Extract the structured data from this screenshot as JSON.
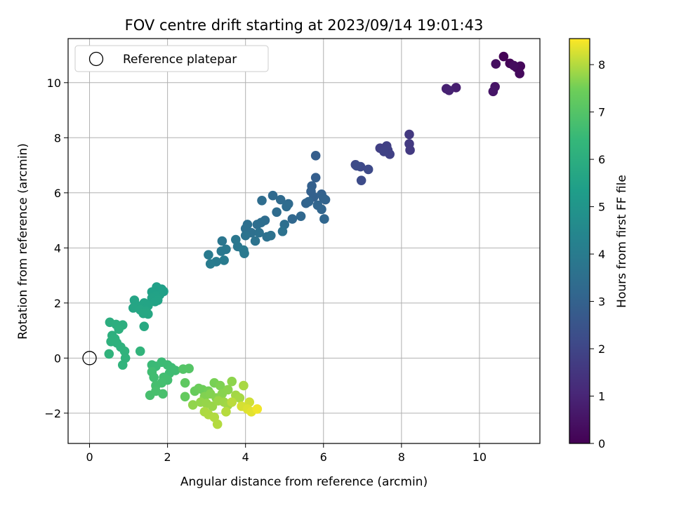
{
  "chart_data": {
    "type": "scatter",
    "title": "FOV centre drift starting at 2023/09/14 19:01:43",
    "xlabel": "Angular distance from reference (arcmin)",
    "ylabel": "Rotation from reference (arcmin)",
    "xlim": [
      -0.55,
      11.55
    ],
    "ylim": [
      -3.1,
      11.6
    ],
    "xticks": [
      0,
      2,
      4,
      6,
      8,
      10
    ],
    "yticks": [
      -2,
      0,
      2,
      4,
      6,
      8,
      10
    ],
    "grid": true,
    "legend": {
      "placement": "top-left",
      "entries": [
        {
          "label": "Reference platepar",
          "marker": "open-circle"
        }
      ]
    },
    "reference_point": {
      "x": 0,
      "y": 0
    },
    "colorbar": {
      "label": "Hours from first FF file",
      "min": 0,
      "max": 8.55,
      "ticks": [
        0,
        1,
        2,
        3,
        4,
        5,
        6,
        7,
        8
      ],
      "colormap": "viridis"
    },
    "points": [
      {
        "x": 10.62,
        "y": 10.95,
        "c": 0.05
      },
      {
        "x": 10.78,
        "y": 10.7,
        "c": 0.1
      },
      {
        "x": 10.95,
        "y": 10.55,
        "c": 0.15
      },
      {
        "x": 11.05,
        "y": 10.6,
        "c": 0.2
      },
      {
        "x": 11.03,
        "y": 10.33,
        "c": 0.25
      },
      {
        "x": 10.88,
        "y": 10.62,
        "c": 0.3
      },
      {
        "x": 10.42,
        "y": 10.68,
        "c": 0.35
      },
      {
        "x": 10.4,
        "y": 9.85,
        "c": 0.5
      },
      {
        "x": 10.35,
        "y": 9.68,
        "c": 0.55
      },
      {
        "x": 9.4,
        "y": 9.82,
        "c": 0.8
      },
      {
        "x": 9.15,
        "y": 9.78,
        "c": 0.85
      },
      {
        "x": 9.22,
        "y": 9.72,
        "c": 0.9
      },
      {
        "x": 8.2,
        "y": 8.12,
        "c": 1.6
      },
      {
        "x": 8.2,
        "y": 7.78,
        "c": 1.62
      },
      {
        "x": 8.22,
        "y": 7.55,
        "c": 1.65
      },
      {
        "x": 7.45,
        "y": 7.62,
        "c": 1.8
      },
      {
        "x": 7.62,
        "y": 7.7,
        "c": 1.82
      },
      {
        "x": 7.65,
        "y": 7.55,
        "c": 1.84
      },
      {
        "x": 7.7,
        "y": 7.4,
        "c": 1.86
      },
      {
        "x": 7.55,
        "y": 7.5,
        "c": 1.88
      },
      {
        "x": 6.82,
        "y": 7.02,
        "c": 2.1
      },
      {
        "x": 6.95,
        "y": 6.95,
        "c": 2.12
      },
      {
        "x": 7.15,
        "y": 6.85,
        "c": 2.15
      },
      {
        "x": 6.97,
        "y": 6.45,
        "c": 2.18
      },
      {
        "x": 6.85,
        "y": 6.98,
        "c": 2.2
      },
      {
        "x": 5.8,
        "y": 7.35,
        "c": 2.85
      },
      {
        "x": 5.8,
        "y": 6.55,
        "c": 2.9
      },
      {
        "x": 5.7,
        "y": 6.25,
        "c": 2.92
      },
      {
        "x": 5.68,
        "y": 6.05,
        "c": 2.95
      },
      {
        "x": 5.75,
        "y": 5.85,
        "c": 2.97
      },
      {
        "x": 5.95,
        "y": 5.95,
        "c": 3.0
      },
      {
        "x": 6.0,
        "y": 5.8,
        "c": 3.02
      },
      {
        "x": 6.05,
        "y": 5.75,
        "c": 3.05
      },
      {
        "x": 5.55,
        "y": 5.62,
        "c": 3.07
      },
      {
        "x": 5.62,
        "y": 5.68,
        "c": 3.1
      },
      {
        "x": 5.85,
        "y": 5.55,
        "c": 3.12
      },
      {
        "x": 5.95,
        "y": 5.4,
        "c": 3.15
      },
      {
        "x": 6.02,
        "y": 5.05,
        "c": 3.17
      },
      {
        "x": 5.42,
        "y": 5.15,
        "c": 3.2
      },
      {
        "x": 5.2,
        "y": 5.05,
        "c": 3.22
      },
      {
        "x": 4.7,
        "y": 5.9,
        "c": 3.3
      },
      {
        "x": 4.9,
        "y": 5.75,
        "c": 3.32
      },
      {
        "x": 5.1,
        "y": 5.6,
        "c": 3.34
      },
      {
        "x": 5.05,
        "y": 5.5,
        "c": 3.36
      },
      {
        "x": 4.8,
        "y": 5.3,
        "c": 3.38
      },
      {
        "x": 4.42,
        "y": 5.72,
        "c": 3.4
      },
      {
        "x": 4.5,
        "y": 5.0,
        "c": 3.42
      },
      {
        "x": 4.3,
        "y": 4.85,
        "c": 3.44
      },
      {
        "x": 4.4,
        "y": 4.92,
        "c": 3.46
      },
      {
        "x": 5.0,
        "y": 4.85,
        "c": 3.48
      },
      {
        "x": 4.05,
        "y": 4.85,
        "c": 3.5
      },
      {
        "x": 4.0,
        "y": 4.7,
        "c": 3.52
      },
      {
        "x": 4.15,
        "y": 4.55,
        "c": 3.54
      },
      {
        "x": 4.35,
        "y": 4.55,
        "c": 3.56
      },
      {
        "x": 4.55,
        "y": 4.4,
        "c": 3.58
      },
      {
        "x": 4.65,
        "y": 4.45,
        "c": 3.6
      },
      {
        "x": 4.95,
        "y": 4.6,
        "c": 3.62
      },
      {
        "x": 4.25,
        "y": 4.25,
        "c": 3.64
      },
      {
        "x": 4.0,
        "y": 4.45,
        "c": 3.66
      },
      {
        "x": 3.4,
        "y": 4.25,
        "c": 3.8
      },
      {
        "x": 3.75,
        "y": 4.3,
        "c": 3.82
      },
      {
        "x": 3.8,
        "y": 4.05,
        "c": 3.84
      },
      {
        "x": 3.5,
        "y": 3.95,
        "c": 3.86
      },
      {
        "x": 3.38,
        "y": 3.88,
        "c": 3.88
      },
      {
        "x": 3.95,
        "y": 3.92,
        "c": 3.9
      },
      {
        "x": 3.97,
        "y": 3.8,
        "c": 3.92
      },
      {
        "x": 3.05,
        "y": 3.75,
        "c": 3.95
      },
      {
        "x": 3.45,
        "y": 3.55,
        "c": 3.97
      },
      {
        "x": 3.25,
        "y": 3.5,
        "c": 4.0
      },
      {
        "x": 3.1,
        "y": 3.42,
        "c": 4.02
      },
      {
        "x": 1.85,
        "y": 2.5,
        "c": 5.4
      },
      {
        "x": 1.9,
        "y": 2.42,
        "c": 5.42
      },
      {
        "x": 1.72,
        "y": 2.58,
        "c": 5.44
      },
      {
        "x": 1.6,
        "y": 2.4,
        "c": 5.46
      },
      {
        "x": 1.8,
        "y": 2.3,
        "c": 5.48
      },
      {
        "x": 1.7,
        "y": 2.25,
        "c": 5.5
      },
      {
        "x": 1.6,
        "y": 2.18,
        "c": 5.52
      },
      {
        "x": 1.75,
        "y": 2.1,
        "c": 5.54
      },
      {
        "x": 1.68,
        "y": 2.05,
        "c": 5.56
      },
      {
        "x": 1.4,
        "y": 2.0,
        "c": 5.58
      },
      {
        "x": 1.5,
        "y": 1.9,
        "c": 5.6
      },
      {
        "x": 1.15,
        "y": 2.1,
        "c": 5.62
      },
      {
        "x": 1.18,
        "y": 1.95,
        "c": 5.64
      },
      {
        "x": 1.12,
        "y": 1.82,
        "c": 5.66
      },
      {
        "x": 1.3,
        "y": 1.75,
        "c": 5.68
      },
      {
        "x": 1.45,
        "y": 1.7,
        "c": 5.7
      },
      {
        "x": 1.5,
        "y": 1.6,
        "c": 5.72
      },
      {
        "x": 1.38,
        "y": 1.62,
        "c": 5.74
      },
      {
        "x": 1.4,
        "y": 1.15,
        "c": 5.8
      },
      {
        "x": 0.52,
        "y": 1.3,
        "c": 6.0
      },
      {
        "x": 0.68,
        "y": 1.22,
        "c": 6.02
      },
      {
        "x": 0.85,
        "y": 1.2,
        "c": 6.04
      },
      {
        "x": 0.75,
        "y": 1.05,
        "c": 6.06
      },
      {
        "x": 0.58,
        "y": 0.82,
        "c": 6.08
      },
      {
        "x": 0.65,
        "y": 0.7,
        "c": 6.1
      },
      {
        "x": 0.55,
        "y": 0.6,
        "c": 6.12
      },
      {
        "x": 0.7,
        "y": 0.55,
        "c": 6.14
      },
      {
        "x": 0.8,
        "y": 0.4,
        "c": 6.16
      },
      {
        "x": 0.9,
        "y": 0.25,
        "c": 6.18
      },
      {
        "x": 0.5,
        "y": 0.15,
        "c": 6.2
      },
      {
        "x": 0.92,
        "y": 0.0,
        "c": 6.22
      },
      {
        "x": 0.85,
        "y": -0.25,
        "c": 6.24
      },
      {
        "x": 1.3,
        "y": 0.25,
        "c": 6.26
      },
      {
        "x": 1.6,
        "y": -0.25,
        "c": 6.5
      },
      {
        "x": 1.7,
        "y": -0.3,
        "c": 6.52
      },
      {
        "x": 1.85,
        "y": -0.15,
        "c": 6.54
      },
      {
        "x": 2.0,
        "y": -0.25,
        "c": 6.56
      },
      {
        "x": 2.1,
        "y": -0.35,
        "c": 6.58
      },
      {
        "x": 2.05,
        "y": -0.55,
        "c": 6.6
      },
      {
        "x": 2.2,
        "y": -0.45,
        "c": 6.62
      },
      {
        "x": 1.6,
        "y": -0.5,
        "c": 6.64
      },
      {
        "x": 1.65,
        "y": -0.7,
        "c": 6.66
      },
      {
        "x": 1.9,
        "y": -0.7,
        "c": 6.68
      },
      {
        "x": 2.0,
        "y": -0.8,
        "c": 6.7
      },
      {
        "x": 1.85,
        "y": -0.9,
        "c": 6.72
      },
      {
        "x": 1.7,
        "y": -1.0,
        "c": 6.74
      },
      {
        "x": 1.55,
        "y": -1.35,
        "c": 6.76
      },
      {
        "x": 1.7,
        "y": -1.2,
        "c": 6.78
      },
      {
        "x": 1.88,
        "y": -1.3,
        "c": 6.8
      },
      {
        "x": 2.4,
        "y": -0.4,
        "c": 7.0
      },
      {
        "x": 2.55,
        "y": -0.38,
        "c": 7.02
      },
      {
        "x": 2.45,
        "y": -0.9,
        "c": 7.2
      },
      {
        "x": 2.45,
        "y": -1.4,
        "c": 7.3
      },
      {
        "x": 2.7,
        "y": -1.2,
        "c": 7.35
      },
      {
        "x": 2.8,
        "y": -1.1,
        "c": 7.4
      },
      {
        "x": 2.9,
        "y": -1.15,
        "c": 7.45
      },
      {
        "x": 3.05,
        "y": -1.2,
        "c": 7.5
      },
      {
        "x": 3.2,
        "y": -0.9,
        "c": 7.55
      },
      {
        "x": 3.35,
        "y": -1.0,
        "c": 7.6
      },
      {
        "x": 2.95,
        "y": -1.4,
        "c": 7.62
      },
      {
        "x": 3.1,
        "y": -1.3,
        "c": 7.64
      },
      {
        "x": 3.25,
        "y": -1.45,
        "c": 7.66
      },
      {
        "x": 3.4,
        "y": -1.3,
        "c": 7.68
      },
      {
        "x": 3.55,
        "y": -1.15,
        "c": 7.7
      },
      {
        "x": 3.65,
        "y": -0.85,
        "c": 7.72
      },
      {
        "x": 2.65,
        "y": -1.7,
        "c": 7.74
      },
      {
        "x": 2.85,
        "y": -1.6,
        "c": 7.76
      },
      {
        "x": 3.0,
        "y": -1.65,
        "c": 7.78
      },
      {
        "x": 3.15,
        "y": -1.75,
        "c": 7.8
      },
      {
        "x": 3.3,
        "y": -1.55,
        "c": 7.82
      },
      {
        "x": 3.45,
        "y": -1.6,
        "c": 7.84
      },
      {
        "x": 3.55,
        "y": -1.7,
        "c": 7.86
      },
      {
        "x": 3.75,
        "y": -1.35,
        "c": 7.88
      },
      {
        "x": 3.85,
        "y": -1.45,
        "c": 7.9
      },
      {
        "x": 3.95,
        "y": -1.0,
        "c": 7.92
      },
      {
        "x": 2.95,
        "y": -1.95,
        "c": 7.94
      },
      {
        "x": 3.05,
        "y": -2.05,
        "c": 7.96
      },
      {
        "x": 3.2,
        "y": -2.15,
        "c": 7.98
      },
      {
        "x": 3.28,
        "y": -2.4,
        "c": 8.0
      },
      {
        "x": 3.5,
        "y": -1.95,
        "c": 8.02
      },
      {
        "x": 3.65,
        "y": -1.6,
        "c": 8.05
      },
      {
        "x": 4.1,
        "y": -1.6,
        "c": 8.2
      },
      {
        "x": 3.9,
        "y": -1.75,
        "c": 8.25
      },
      {
        "x": 4.05,
        "y": -1.85,
        "c": 8.3
      },
      {
        "x": 4.15,
        "y": -1.95,
        "c": 8.35
      },
      {
        "x": 4.3,
        "y": -1.85,
        "c": 8.45
      }
    ]
  }
}
